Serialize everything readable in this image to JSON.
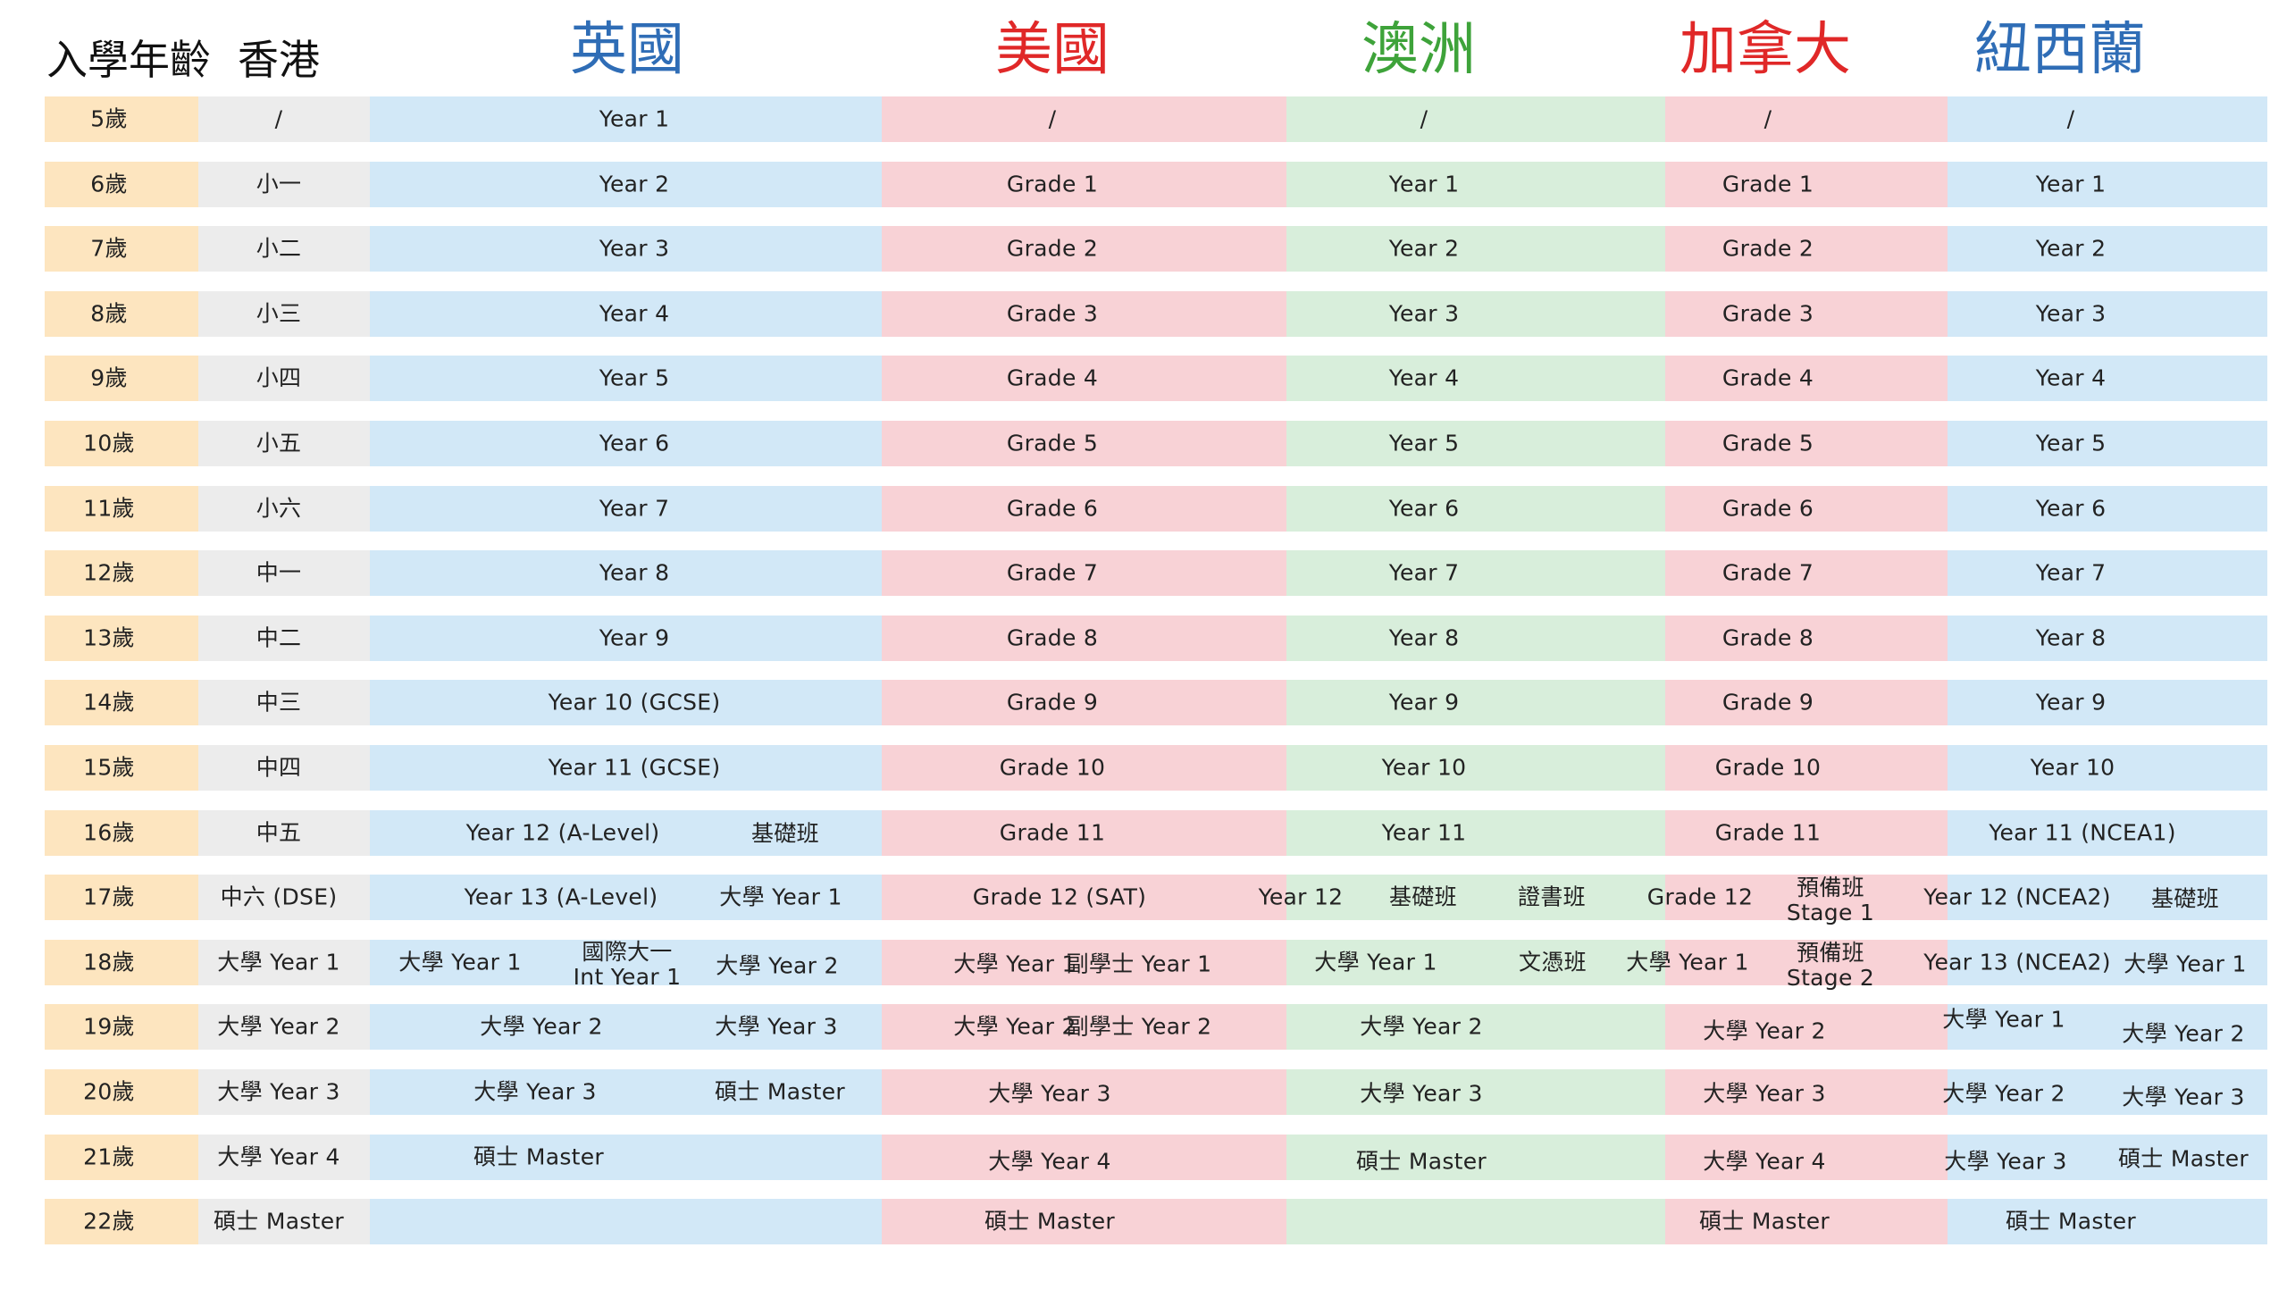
{
  "header": {
    "age_label": "入學年齡",
    "hk_label": "香港",
    "countries": [
      {
        "key": "uk",
        "name": "英國",
        "color": "#2f6db6"
      },
      {
        "key": "us",
        "name": "美國",
        "color": "#e02828"
      },
      {
        "key": "au",
        "name": "澳洲",
        "color": "#3ea33a"
      },
      {
        "key": "ca",
        "name": "加拿大",
        "color": "#e02828"
      },
      {
        "key": "nz",
        "name": "紐西蘭",
        "color": "#2f6db6"
      }
    ]
  },
  "colors": {
    "age": "#fde5bf",
    "hk": "#ececec",
    "uk": "#d2e8f7",
    "us": "#f8d2d6",
    "au": "#d8eedb",
    "ca": "#f8d2d6",
    "nz": "#d2e8f7"
  },
  "rows": [
    {
      "age": "5歲",
      "hk": "/",
      "uk": [
        "Year 1"
      ],
      "us": [
        "/"
      ],
      "au": [
        "/"
      ],
      "ca": [
        "/"
      ],
      "nz": [
        "/"
      ]
    },
    {
      "age": "6歲",
      "hk": "小一",
      "uk": [
        "Year 2"
      ],
      "us": [
        "Grade 1"
      ],
      "au": [
        "Year 1"
      ],
      "ca": [
        "Grade 1"
      ],
      "nz": [
        "Year 1"
      ]
    },
    {
      "age": "7歲",
      "hk": "小二",
      "uk": [
        "Year 3"
      ],
      "us": [
        "Grade 2"
      ],
      "au": [
        "Year 2"
      ],
      "ca": [
        "Grade 2"
      ],
      "nz": [
        "Year 2"
      ]
    },
    {
      "age": "8歲",
      "hk": "小三",
      "uk": [
        "Year 4"
      ],
      "us": [
        "Grade 3"
      ],
      "au": [
        "Year 3"
      ],
      "ca": [
        "Grade 3"
      ],
      "nz": [
        "Year 3"
      ]
    },
    {
      "age": "9歲",
      "hk": "小四",
      "uk": [
        "Year 5"
      ],
      "us": [
        "Grade 4"
      ],
      "au": [
        "Year 4"
      ],
      "ca": [
        "Grade 4"
      ],
      "nz": [
        "Year 4"
      ]
    },
    {
      "age": "10歲",
      "hk": "小五",
      "uk": [
        "Year 6"
      ],
      "us": [
        "Grade 5"
      ],
      "au": [
        "Year 5"
      ],
      "ca": [
        "Grade 5"
      ],
      "nz": [
        "Year 5"
      ]
    },
    {
      "age": "11歲",
      "hk": "小六",
      "uk": [
        "Year 7"
      ],
      "us": [
        "Grade 6"
      ],
      "au": [
        "Year 6"
      ],
      "ca": [
        "Grade 6"
      ],
      "nz": [
        "Year 6"
      ]
    },
    {
      "age": "12歲",
      "hk": "中一",
      "uk": [
        "Year 8"
      ],
      "us": [
        "Grade 7"
      ],
      "au": [
        "Year 7"
      ],
      "ca": [
        "Grade 7"
      ],
      "nz": [
        "Year 7"
      ]
    },
    {
      "age": "13歲",
      "hk": "中二",
      "uk": [
        "Year 9"
      ],
      "us": [
        "Grade 8"
      ],
      "au": [
        "Year 8"
      ],
      "ca": [
        "Grade 8"
      ],
      "nz": [
        "Year 8"
      ]
    },
    {
      "age": "14歲",
      "hk": "中三",
      "uk": [
        "Year 10 (GCSE)"
      ],
      "us": [
        "Grade 9"
      ],
      "au": [
        "Year 9"
      ],
      "ca": [
        "Grade 9"
      ],
      "nz": [
        "Year 9"
      ]
    },
    {
      "age": "15歲",
      "hk": "中四",
      "uk": [
        "Year 11 (GCSE)"
      ],
      "us": [
        "Grade 10"
      ],
      "au": [
        "Year 10"
      ],
      "ca": [
        "Grade 10"
      ],
      "nz": [
        "Year 10"
      ]
    },
    {
      "age": "16歲",
      "hk": "中五",
      "uk": [
        "Year 12 (A-Level)",
        "基礎班"
      ],
      "us": [
        "Grade 11"
      ],
      "au": [
        "Year 11"
      ],
      "ca": [
        "Grade 11"
      ],
      "nz": [
        "Year 11 (NCEA1)"
      ]
    },
    {
      "age": "17歲",
      "hk": "中六 (DSE)",
      "uk": [
        "Year 13 (A-Level)",
        "大學 Year 1"
      ],
      "us": [
        "Grade 12 (SAT)"
      ],
      "au": [
        "Year 12",
        "基礎班",
        "證書班"
      ],
      "ca": [
        "Grade 12",
        "預備班\nStage 1"
      ],
      "nz": [
        "Year 12 (NCEA2)",
        "基礎班"
      ]
    },
    {
      "age": "18歲",
      "hk": "大學 Year 1",
      "uk": [
        "大學 Year 1",
        "國際大一\nInt Year 1",
        "大學 Year 2"
      ],
      "us": [
        "大學 Year 1",
        "副學士 Year 1"
      ],
      "au": [
        "大學 Year 1",
        "文憑班"
      ],
      "ca": [
        "大學 Year 1",
        "預備班\nStage 2"
      ],
      "nz": [
        "Year 13 (NCEA2)",
        "大學 Year 1"
      ]
    },
    {
      "age": "19歲",
      "hk": "大學 Year 2",
      "uk": [
        "大學 Year 2",
        "大學 Year 3"
      ],
      "us": [
        "大學 Year 2",
        "副學士 Year 2"
      ],
      "au": [
        "大學 Year 2"
      ],
      "ca": [
        "大學 Year 2"
      ],
      "nz": [
        "大學 Year 1",
        "大學 Year 2"
      ]
    },
    {
      "age": "20歲",
      "hk": "大學 Year 3",
      "uk": [
        "大學 Year 3",
        "碩士 Master"
      ],
      "us": [
        "大學 Year 3"
      ],
      "au": [
        "大學 Year 3"
      ],
      "ca": [
        "大學 Year 3"
      ],
      "nz": [
        "大學 Year 2",
        "大學 Year 3"
      ]
    },
    {
      "age": "21歲",
      "hk": "大學 Year 4",
      "uk": [
        "碩士 Master"
      ],
      "us": [
        "大學 Year 4"
      ],
      "au": [
        "碩士 Master"
      ],
      "ca": [
        "大學 Year 4"
      ],
      "nz": [
        "大學 Year 3",
        "碩士 Master"
      ]
    },
    {
      "age": "22歲",
      "hk": "碩士 Master",
      "uk": [],
      "us": [
        "碩士 Master"
      ],
      "au": [],
      "ca": [
        "碩士 Master"
      ],
      "nz": [
        "碩士 Master"
      ]
    }
  ]
}
